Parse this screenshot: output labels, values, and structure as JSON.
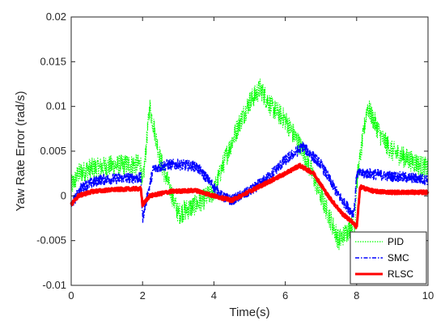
{
  "chart_data": {
    "type": "line",
    "title": "",
    "xlabel": "Time(s)",
    "ylabel": "Yaw Rate Error (rad/s)",
    "xlim": [
      0,
      10
    ],
    "ylim": [
      -0.01,
      0.02
    ],
    "x_ticks": [
      0,
      2,
      4,
      6,
      8,
      10
    ],
    "x_tick_labels": [
      "0",
      "2",
      "4",
      "6",
      "8",
      "10"
    ],
    "y_ticks": [
      -0.01,
      -0.005,
      0,
      0.005,
      0.01,
      0.015,
      0.02
    ],
    "y_tick_labels": [
      "-0.01",
      "-0.005",
      "0",
      "0.005",
      "0.01",
      "0.015",
      "0.02"
    ],
    "grid": false,
    "legend_position": "bottom-right",
    "series": [
      {
        "name": "PID",
        "color": "#00ff00",
        "style": "dotted",
        "x": [
          0,
          0.2,
          0.5,
          1.0,
          1.5,
          1.95,
          2.0,
          2.2,
          2.5,
          3.0,
          3.5,
          4.0,
          4.3,
          4.7,
          5.0,
          5.3,
          5.6,
          6.0,
          6.5,
          7.0,
          7.5,
          7.95,
          8.0,
          8.3,
          8.7,
          9.0,
          9.5,
          10.0
        ],
        "y": [
          0.001,
          0.0025,
          0.003,
          0.0033,
          0.0035,
          0.0035,
          0.001,
          0.01,
          0.004,
          -0.002,
          -0.001,
          0.0005,
          0.004,
          0.008,
          0.0105,
          0.012,
          0.01,
          0.0085,
          0.005,
          0.0,
          -0.005,
          -0.003,
          0.0015,
          0.01,
          0.0065,
          0.005,
          0.004,
          0.003
        ],
        "noise": 0.0012
      },
      {
        "name": "SMC",
        "color": "#0000ff",
        "style": "dashdot",
        "x": [
          0,
          0.3,
          0.8,
          1.5,
          1.95,
          2.0,
          2.3,
          2.7,
          3.0,
          3.5,
          3.8,
          4.2,
          4.5,
          5.0,
          5.5,
          6.0,
          6.5,
          7.0,
          7.5,
          7.9,
          7.95,
          8.0,
          8.3,
          9.0,
          10.0
        ],
        "y": [
          -0.001,
          0.001,
          0.0018,
          0.002,
          0.002,
          -0.0025,
          0.003,
          0.0035,
          0.0035,
          0.0033,
          0.002,
          0.0,
          -0.0005,
          0.0005,
          0.002,
          0.004,
          0.0055,
          0.0035,
          0.0,
          -0.002,
          -0.001,
          0.0025,
          0.0025,
          0.0022,
          0.0018
        ],
        "noise": 0.0006
      },
      {
        "name": "RLSC",
        "color": "#ff0000",
        "style": "solid",
        "x": [
          0,
          0.2,
          0.6,
          1.2,
          1.8,
          1.95,
          2.0,
          2.2,
          2.8,
          3.5,
          4.0,
          4.5,
          5.0,
          5.5,
          6.0,
          6.4,
          6.8,
          7.2,
          7.6,
          7.9,
          8.0,
          8.1,
          8.5,
          9.0,
          10.0
        ],
        "y": [
          -0.001,
          0.0,
          0.0005,
          0.0007,
          0.0008,
          0.0008,
          -0.001,
          0.0,
          0.0005,
          0.0006,
          0.0,
          -0.0005,
          0.0005,
          0.0015,
          0.0025,
          0.0034,
          0.0025,
          0.0,
          -0.002,
          -0.003,
          -0.0035,
          0.001,
          0.0005,
          0.0004,
          0.0004
        ],
        "noise": 0.0002
      }
    ]
  }
}
